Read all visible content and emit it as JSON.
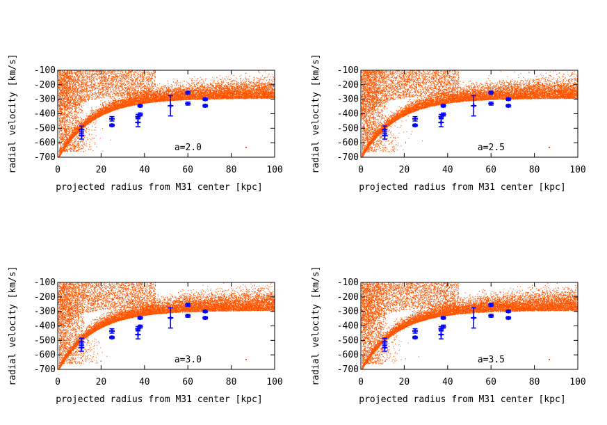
{
  "chart_data": [
    {
      "type": "scatter",
      "panel": "top-left",
      "xlabel": "projected radius from M31 center [kpc]",
      "ylabel": "radial velocity [km/s]",
      "xlim": [
        0,
        100
      ],
      "ylim": [
        -700,
        -100
      ],
      "xticks": [
        0,
        20,
        40,
        60,
        80,
        100
      ],
      "yticks": [
        -700,
        -600,
        -500,
        -400,
        -300,
        -200,
        -100
      ],
      "legend_label": "a=2.0",
      "legend_position": "bottom-right",
      "simulation_color": "#ff5500",
      "observation_color": "#0000ff",
      "observations": [
        {
          "x": 11,
          "y": -510,
          "err": 25
        },
        {
          "x": 11,
          "y": -550,
          "err": 25
        },
        {
          "x": 25,
          "y": -435,
          "err": 15
        },
        {
          "x": 25,
          "y": -480,
          "err": 8
        },
        {
          "x": 37,
          "y": -420,
          "err": 15
        },
        {
          "x": 37,
          "y": -460,
          "err": 30
        },
        {
          "x": 38,
          "y": -345,
          "err": 8
        },
        {
          "x": 38,
          "y": -405,
          "err": 10
        },
        {
          "x": 52,
          "y": -345,
          "err": 70
        },
        {
          "x": 60,
          "y": -255,
          "err": 10
        },
        {
          "x": 60,
          "y": -330,
          "err": 10
        },
        {
          "x": 68,
          "y": -300,
          "err": 8
        },
        {
          "x": 68,
          "y": -345,
          "err": 8
        }
      ]
    },
    {
      "type": "scatter",
      "panel": "top-right",
      "xlabel": "projected radius from M31 center [kpc]",
      "ylabel": "radial velocity [km/s]",
      "xlim": [
        0,
        100
      ],
      "ylim": [
        -700,
        -100
      ],
      "xticks": [
        0,
        20,
        40,
        60,
        80,
        100
      ],
      "yticks": [
        -700,
        -600,
        -500,
        -400,
        -300,
        -200,
        -100
      ],
      "legend_label": "a=2.5",
      "legend_position": "bottom-right",
      "simulation_color": "#ff5500",
      "observation_color": "#0000ff",
      "observations": [
        {
          "x": 11,
          "y": -510,
          "err": 25
        },
        {
          "x": 11,
          "y": -550,
          "err": 25
        },
        {
          "x": 25,
          "y": -435,
          "err": 15
        },
        {
          "x": 25,
          "y": -480,
          "err": 8
        },
        {
          "x": 37,
          "y": -420,
          "err": 15
        },
        {
          "x": 37,
          "y": -460,
          "err": 30
        },
        {
          "x": 38,
          "y": -345,
          "err": 8
        },
        {
          "x": 38,
          "y": -405,
          "err": 10
        },
        {
          "x": 52,
          "y": -345,
          "err": 70
        },
        {
          "x": 60,
          "y": -255,
          "err": 10
        },
        {
          "x": 60,
          "y": -330,
          "err": 10
        },
        {
          "x": 68,
          "y": -300,
          "err": 8
        },
        {
          "x": 68,
          "y": -345,
          "err": 8
        }
      ]
    },
    {
      "type": "scatter",
      "panel": "bottom-left",
      "xlabel": "projected radius from M31 center [kpc]",
      "ylabel": "radial velocity [km/s]",
      "xlim": [
        0,
        100
      ],
      "ylim": [
        -700,
        -100
      ],
      "xticks": [
        0,
        20,
        40,
        60,
        80,
        100
      ],
      "yticks": [
        -700,
        -600,
        -500,
        -400,
        -300,
        -200,
        -100
      ],
      "legend_label": "a=3.0",
      "legend_position": "bottom-right",
      "simulation_color": "#ff5500",
      "observation_color": "#0000ff",
      "observations": [
        {
          "x": 11,
          "y": -510,
          "err": 25
        },
        {
          "x": 11,
          "y": -550,
          "err": 25
        },
        {
          "x": 25,
          "y": -435,
          "err": 15
        },
        {
          "x": 25,
          "y": -480,
          "err": 8
        },
        {
          "x": 37,
          "y": -420,
          "err": 15
        },
        {
          "x": 37,
          "y": -460,
          "err": 30
        },
        {
          "x": 38,
          "y": -345,
          "err": 8
        },
        {
          "x": 38,
          "y": -405,
          "err": 10
        },
        {
          "x": 52,
          "y": -345,
          "err": 70
        },
        {
          "x": 60,
          "y": -255,
          "err": 10
        },
        {
          "x": 60,
          "y": -330,
          "err": 10
        },
        {
          "x": 68,
          "y": -300,
          "err": 8
        },
        {
          "x": 68,
          "y": -345,
          "err": 8
        }
      ]
    },
    {
      "type": "scatter",
      "panel": "bottom-right",
      "xlabel": "projected radius from M31 center [kpc]",
      "ylabel": "radial velocity [km/s]",
      "xlim": [
        0,
        100
      ],
      "ylim": [
        -700,
        -100
      ],
      "xticks": [
        0,
        20,
        40,
        60,
        80,
        100
      ],
      "yticks": [
        -700,
        -600,
        -500,
        -400,
        -300,
        -200,
        -100
      ],
      "legend_label": "a=3.5",
      "legend_position": "bottom-right",
      "simulation_color": "#ff5500",
      "observation_color": "#0000ff",
      "observations": [
        {
          "x": 11,
          "y": -510,
          "err": 25
        },
        {
          "x": 11,
          "y": -550,
          "err": 25
        },
        {
          "x": 25,
          "y": -435,
          "err": 15
        },
        {
          "x": 25,
          "y": -480,
          "err": 8
        },
        {
          "x": 37,
          "y": -420,
          "err": 15
        },
        {
          "x": 37,
          "y": -460,
          "err": 30
        },
        {
          "x": 38,
          "y": -345,
          "err": 8
        },
        {
          "x": 38,
          "y": -405,
          "err": 10
        },
        {
          "x": 52,
          "y": -345,
          "err": 70
        },
        {
          "x": 60,
          "y": -255,
          "err": 10
        },
        {
          "x": 60,
          "y": -330,
          "err": 10
        },
        {
          "x": 68,
          "y": -300,
          "err": 8
        },
        {
          "x": 68,
          "y": -345,
          "err": 8
        }
      ]
    }
  ]
}
